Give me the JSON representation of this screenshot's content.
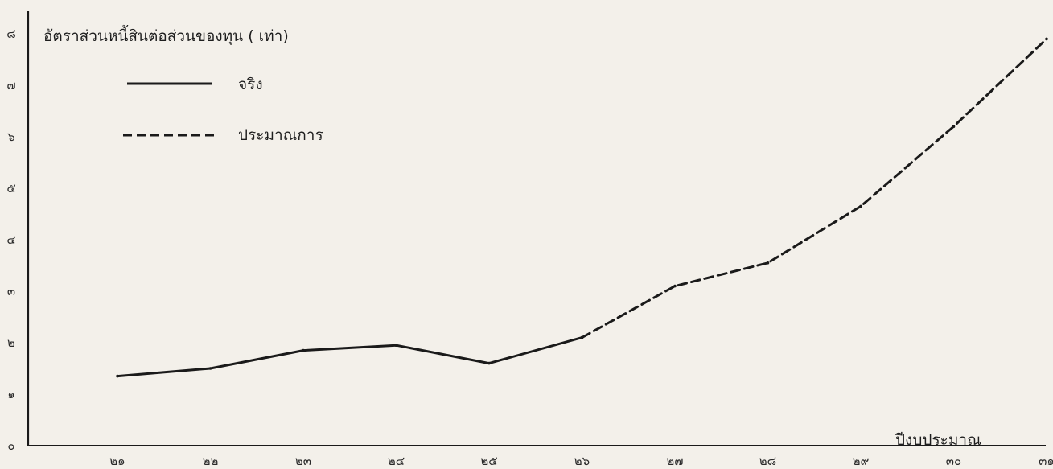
{
  "chart_data": {
    "type": "line",
    "ylabel": "อัตราส่วนหนี้สินต่อส่วนของทุน ( เท่า)",
    "xlabel": "ปีงบประมาณ",
    "x_ticks": [
      "๒๑",
      "๒๒",
      "๒๓",
      "๒๔",
      "๒๕",
      "๒๖",
      "๒๗",
      "๒๘",
      "๒๙",
      "๓๐",
      "๓๑"
    ],
    "y_ticks": [
      "๐",
      "๑",
      "๒",
      "๓",
      "๔",
      "๕",
      "๖",
      "๗",
      "๘"
    ],
    "ylim": [
      0,
      8
    ],
    "grid": false,
    "legend_position": "top-left",
    "series": [
      {
        "name": "จริง",
        "style": "solid",
        "color": "#1a1a1a",
        "x": [
          "๒๑",
          "๒๒",
          "๒๓",
          "๒๔",
          "๒๕",
          "๒๖"
        ],
        "values": [
          1.35,
          1.5,
          1.85,
          1.95,
          1.6,
          2.1
        ]
      },
      {
        "name": "ประมาณการ",
        "style": "dashed",
        "color": "#1a1a1a",
        "x": [
          "๒๖",
          "๒๗",
          "๒๘",
          "๒๙",
          "๓๐",
          "๓๑"
        ],
        "values": [
          2.1,
          3.1,
          3.55,
          4.65,
          6.2,
          7.9
        ]
      }
    ]
  }
}
